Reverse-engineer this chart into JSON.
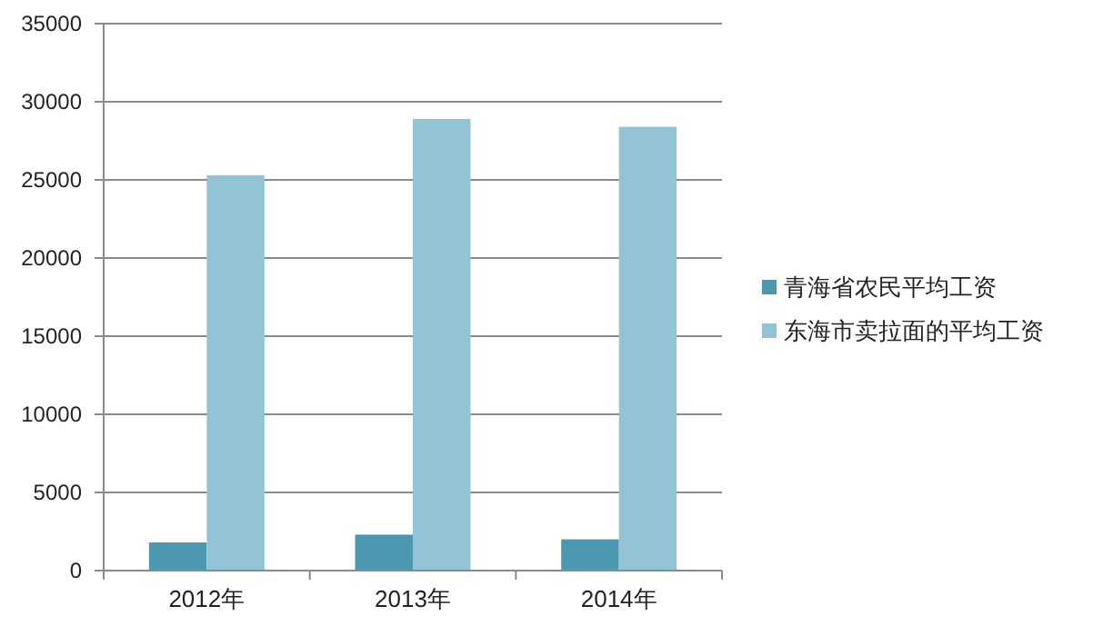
{
  "chart_data": {
    "type": "bar",
    "categories": [
      "2012年",
      "2013年",
      "2014年"
    ],
    "series": [
      {
        "name": "青海省农民平均工资",
        "color": "#4a99b0",
        "values": [
          1800,
          2300,
          2000
        ]
      },
      {
        "name": "东海市卖拉面的平均工资",
        "color": "#93c4d6",
        "values": [
          25300,
          28900,
          28400
        ]
      }
    ],
    "ylim": [
      0,
      35000
    ],
    "yticks": [
      0,
      5000,
      10000,
      15000,
      20000,
      25000,
      30000,
      35000
    ],
    "grid": "y",
    "legend": "right"
  }
}
